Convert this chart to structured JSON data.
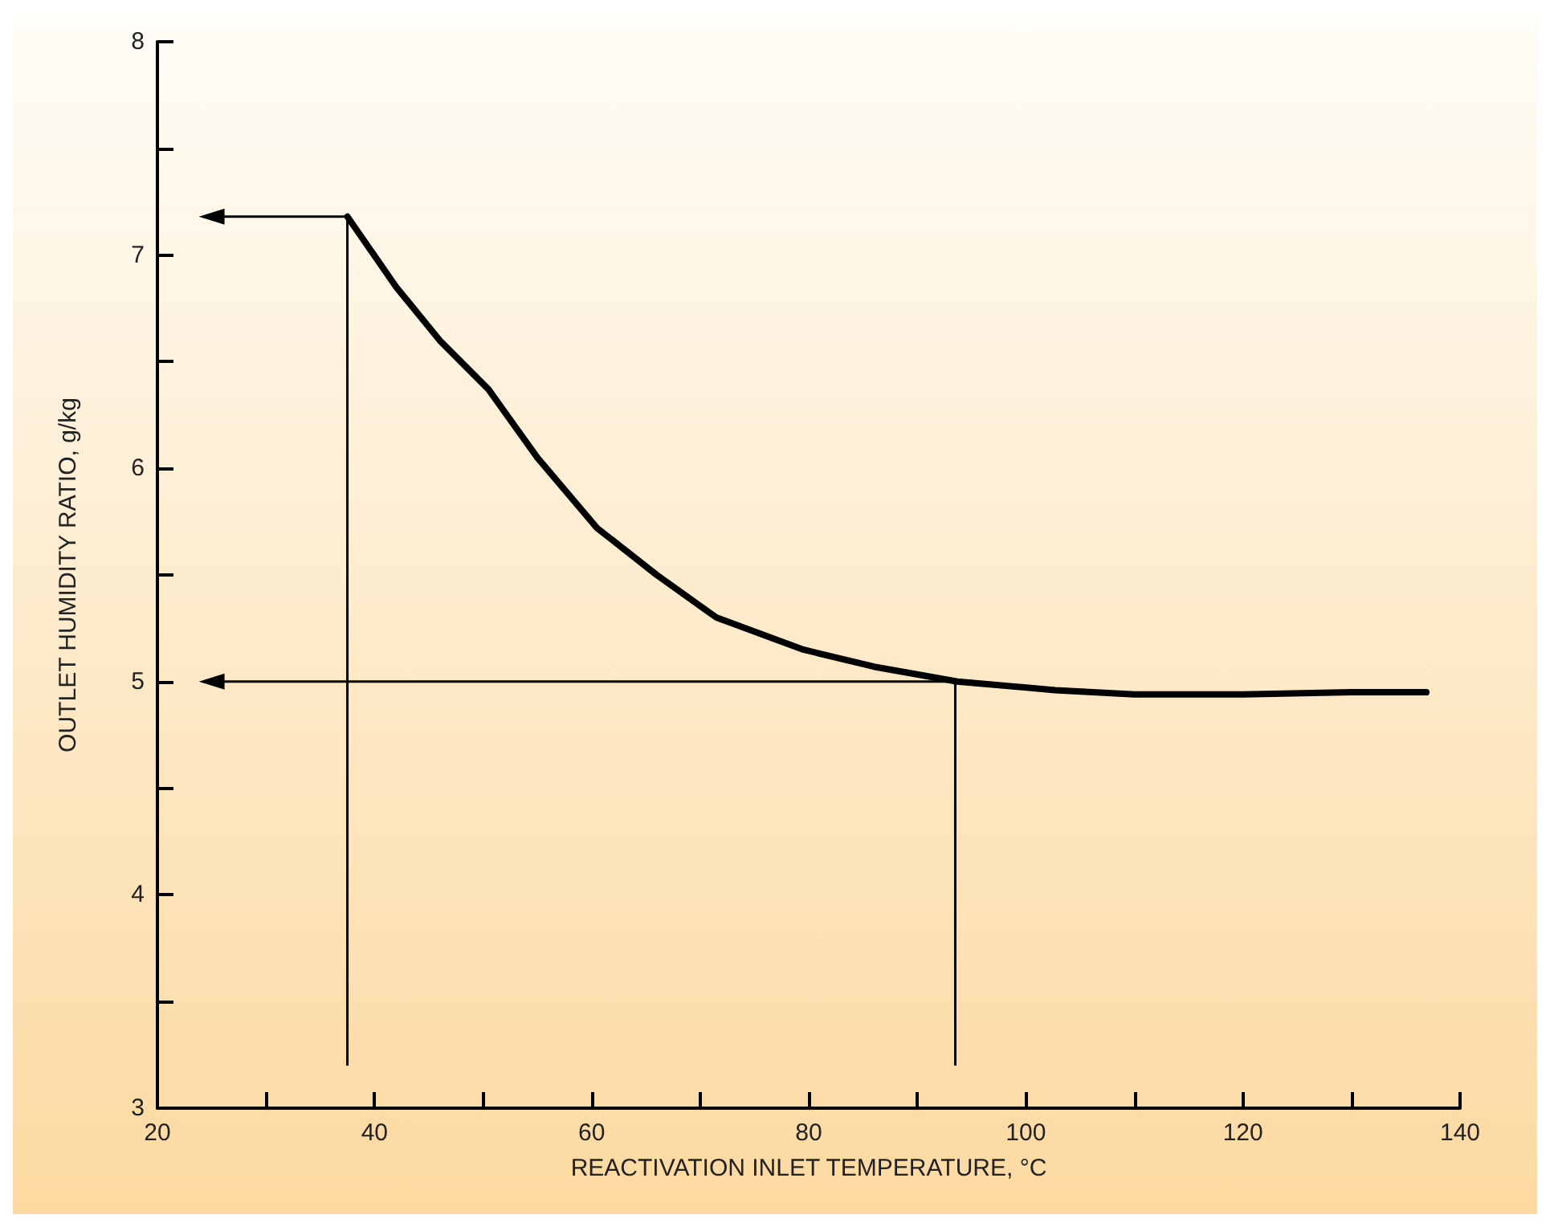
{
  "chart_data": {
    "type": "line",
    "xlabel": "REACTIVATION INLET TEMPERATURE, °C",
    "ylabel": "OUTLET HUMIDITY RATIO, g/kg",
    "xlim": [
      20,
      140
    ],
    "ylim": [
      3,
      8
    ],
    "xticks": [
      20,
      {
        "value": 30,
        "label": null
      },
      40,
      {
        "value": 50,
        "label": null
      },
      60,
      {
        "value": 70,
        "label": null
      },
      80,
      {
        "value": 90,
        "label": null
      },
      100,
      {
        "value": 110,
        "label": null
      },
      120,
      {
        "value": 130,
        "label": null
      },
      140
    ],
    "yticks": [
      3,
      {
        "value": 3.5,
        "label": null
      },
      4,
      {
        "value": 4.5,
        "label": null
      },
      5,
      {
        "value": 5.5,
        "label": null
      },
      6,
      {
        "value": 6.5,
        "label": null
      },
      7,
      {
        "value": 7.5,
        "label": null
      },
      8
    ],
    "grid": false,
    "marker": "none",
    "series": [
      {
        "color": "#000000",
        "x": [
          37.5,
          42,
          46,
          50.5,
          55,
          60.5,
          66,
          71.5,
          79.5,
          86,
          93.7,
          102.7,
          110,
          120,
          130,
          136.9
        ],
        "values": [
          7.18,
          6.85,
          6.6,
          6.37,
          6.05,
          5.72,
          5.5,
          5.3,
          5.15,
          5.07,
          5.0,
          4.96,
          4.94,
          4.94,
          4.95,
          4.95
        ]
      },
      {
        "type": "line",
        "color": "#000000",
        "x": [
          37.5,
          37.5,
          25
        ],
        "values": [
          3.2,
          7.18,
          7.18
        ]
      },
      {
        "type": "line",
        "color": "#000000",
        "x": [
          93.5,
          93.5,
          25
        ],
        "values": [
          3.2,
          5.0,
          5.0
        ]
      }
    ]
  }
}
